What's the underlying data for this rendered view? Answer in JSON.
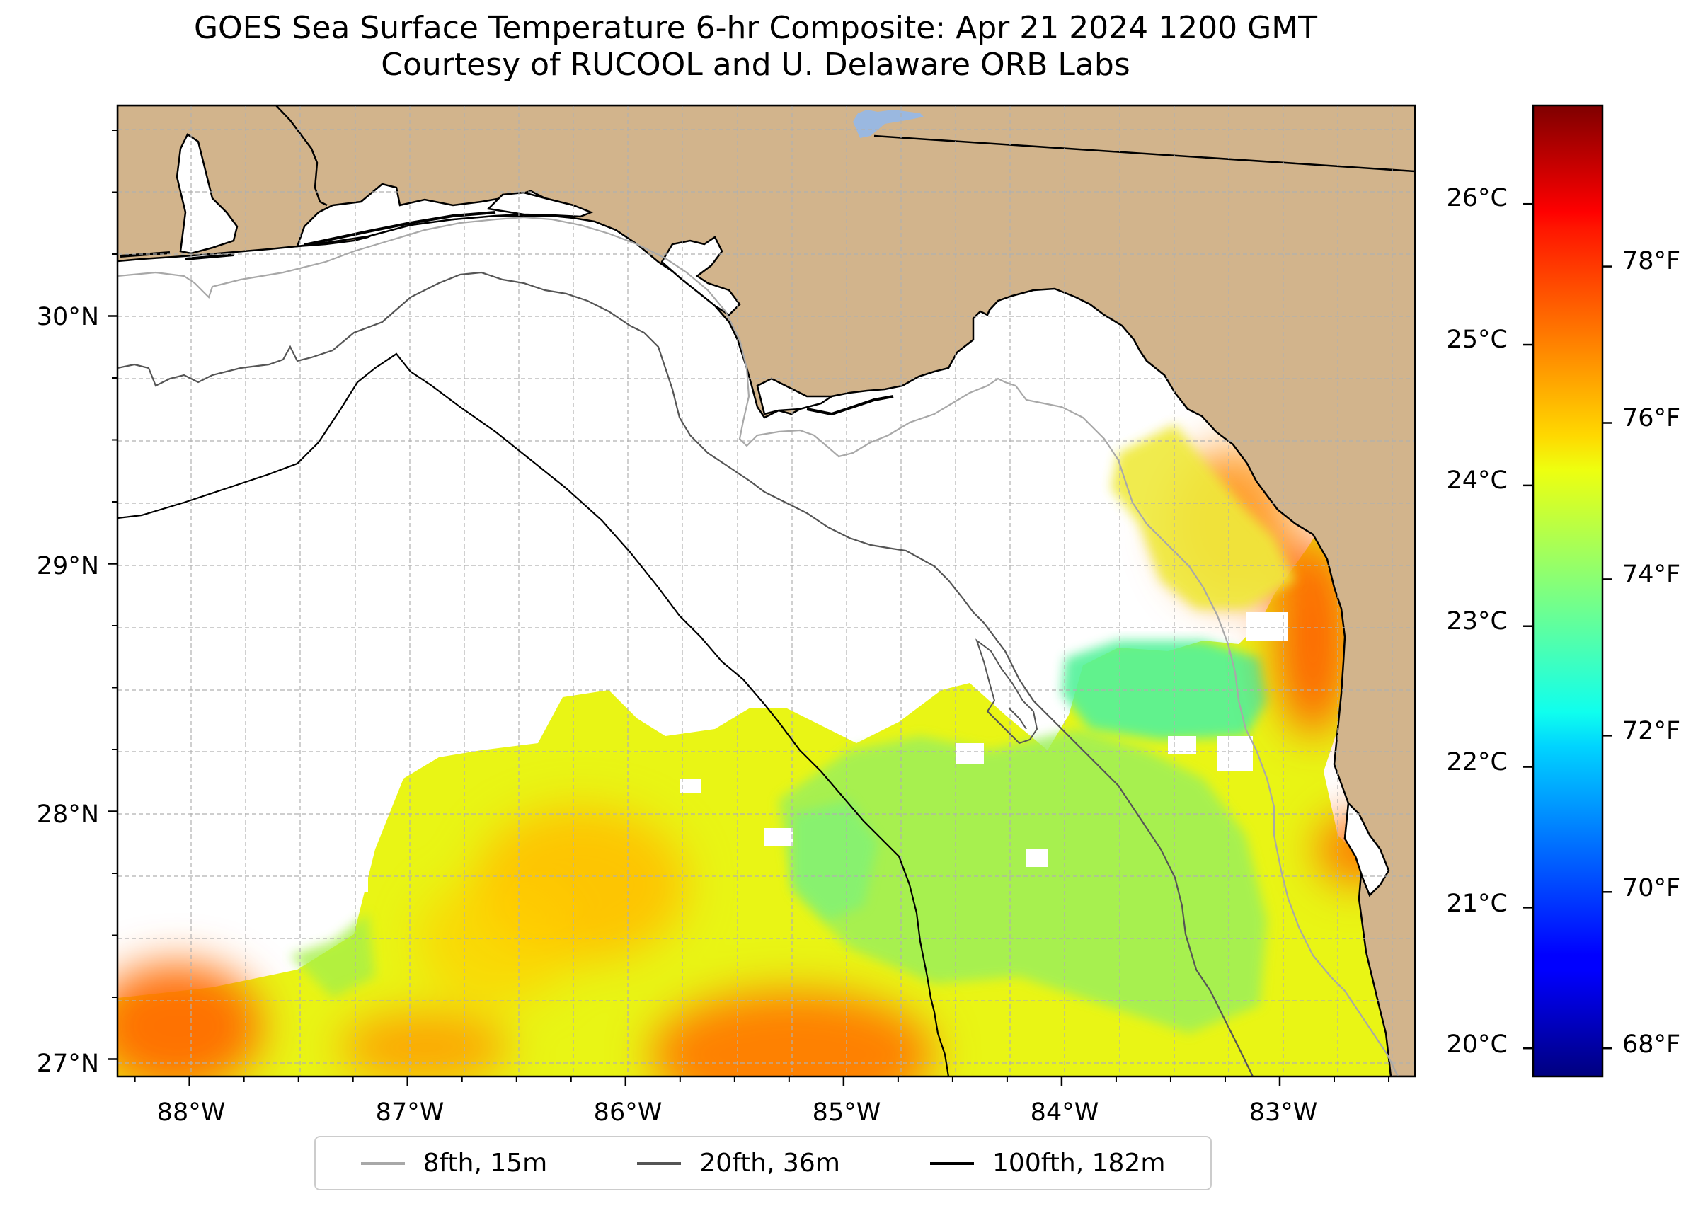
{
  "title": {
    "line1": "GOES Sea Surface Temperature 6-hr Composite: Apr 21 2024 1200 GMT",
    "line2": "Courtesy of RUCOOL and U. Delaware ORB Labs"
  },
  "map": {
    "lon_range": [
      -88.33,
      -82.38
    ],
    "lat_range": [
      26.93,
      30.85
    ],
    "lon_ticks": [
      {
        "value": -88,
        "label": "88°W"
      },
      {
        "value": -87,
        "label": "87°W"
      },
      {
        "value": -86,
        "label": "86°W"
      },
      {
        "value": -85,
        "label": "85°W"
      },
      {
        "value": -84,
        "label": "84°W"
      },
      {
        "value": -83,
        "label": "83°W"
      }
    ],
    "lat_ticks": [
      {
        "value": 27,
        "label": "27°N"
      },
      {
        "value": 28,
        "label": "28°N"
      },
      {
        "value": 29,
        "label": "29°N"
      },
      {
        "value": 30,
        "label": "30°N"
      }
    ],
    "land_color": "#d2b48c",
    "water_no_data_color": "#ffffff",
    "lake_color": "#9ab8e0",
    "gridlines": "dashed"
  },
  "colorbar": {
    "colormap": "jet",
    "celsius_ticks": [
      {
        "value": 20,
        "label": "20°C"
      },
      {
        "value": 21,
        "label": "21°C"
      },
      {
        "value": 22,
        "label": "22°C"
      },
      {
        "value": 23,
        "label": "23°C"
      },
      {
        "value": 24,
        "label": "24°C"
      },
      {
        "value": 25,
        "label": "25°C"
      },
      {
        "value": 26,
        "label": "26°C"
      }
    ],
    "fahrenheit_ticks": [
      {
        "value": 68,
        "label": "68°F"
      },
      {
        "value": 70,
        "label": "70°F"
      },
      {
        "value": 72,
        "label": "72°F"
      },
      {
        "value": 74,
        "label": "74°F"
      },
      {
        "value": 76,
        "label": "76°F"
      },
      {
        "value": 78,
        "label": "78°F"
      }
    ],
    "range_c": [
      19.8,
      26.7
    ]
  },
  "legend": {
    "items": [
      {
        "label": "8fth, 15m",
        "color": "#a8a8a8"
      },
      {
        "label": "20fth, 36m",
        "color": "#555555"
      },
      {
        "label": "100fth, 182m",
        "color": "#000000"
      }
    ]
  }
}
